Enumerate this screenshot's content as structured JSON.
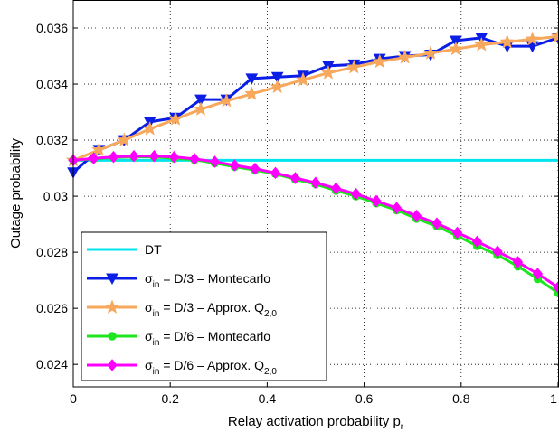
{
  "chart_data": {
    "type": "line",
    "xlabel": "Relay activation probability p",
    "xlabel_sub": "r",
    "ylabel": "Outage probability",
    "xlim": [
      0,
      1
    ],
    "ylim": [
      0.0232,
      0.037
    ],
    "grid": true,
    "legend_position": "bottom-left",
    "x_ticks": [
      "0",
      "0.2",
      "0.4",
      "0.6",
      "0.8",
      "1"
    ],
    "y_ticks": [
      "0.024",
      "0.026",
      "0.028",
      "0.03",
      "0.032",
      "0.034",
      "0.036"
    ],
    "x_tick_values": [
      0,
      0.2,
      0.4,
      0.6,
      0.8,
      1.0
    ],
    "y_tick_values": [
      0.024,
      0.026,
      0.028,
      0.03,
      0.032,
      0.034,
      0.036
    ],
    "series": [
      {
        "name": "DT",
        "legend_parts": [
          {
            "t": "DT",
            "sub": false
          }
        ],
        "color": "#00e5ee",
        "marker": "none",
        "x": [
          0,
          1
        ],
        "y": [
          0.03128,
          0.03128
        ]
      },
      {
        "name": "σin = D/3 – Montecarlo",
        "legend_parts": [
          {
            "t": "σ",
            "sub": false
          },
          {
            "t": "in",
            "sub": true
          },
          {
            "t": " = D/3 – Montecarlo",
            "sub": false
          }
        ],
        "color": "#0a1ee6",
        "marker": "triangle-down",
        "x": [
          0,
          0.053,
          0.105,
          0.158,
          0.211,
          0.263,
          0.316,
          0.368,
          0.421,
          0.474,
          0.526,
          0.579,
          0.632,
          0.684,
          0.737,
          0.789,
          0.842,
          0.895,
          0.947,
          1.0
        ],
        "y": [
          0.03085,
          0.03165,
          0.032,
          0.03265,
          0.0328,
          0.03345,
          0.03345,
          0.0342,
          0.03425,
          0.0343,
          0.03465,
          0.0347,
          0.0349,
          0.035,
          0.03505,
          0.03555,
          0.03565,
          0.03535,
          0.03535,
          0.03565
        ]
      },
      {
        "name": "σin = D/3 – Approx. Q2,0",
        "legend_parts": [
          {
            "t": "σ",
            "sub": false
          },
          {
            "t": "in",
            "sub": true
          },
          {
            "t": " = D/3 – Approx. Q",
            "sub": false
          },
          {
            "t": "2,0",
            "sub": true
          }
        ],
        "color": "#f7a85c",
        "marker": "star",
        "x": [
          0,
          0.053,
          0.105,
          0.158,
          0.211,
          0.263,
          0.316,
          0.368,
          0.421,
          0.474,
          0.526,
          0.579,
          0.632,
          0.684,
          0.737,
          0.789,
          0.842,
          0.895,
          0.947,
          1.0
        ],
        "y": [
          0.03128,
          0.03165,
          0.032,
          0.0324,
          0.03275,
          0.0331,
          0.0334,
          0.03365,
          0.0339,
          0.03415,
          0.0344,
          0.0346,
          0.0348,
          0.03495,
          0.0351,
          0.03525,
          0.0354,
          0.0355,
          0.0356,
          0.0357
        ]
      },
      {
        "name": "σin = D/6 – Montecarlo",
        "legend_parts": [
          {
            "t": "σ",
            "sub": false
          },
          {
            "t": "in",
            "sub": true
          },
          {
            "t": " = D/6 – Montecarlo",
            "sub": false
          }
        ],
        "color": "#1ee61e",
        "marker": "circle",
        "x": [
          0,
          0.042,
          0.083,
          0.125,
          0.167,
          0.208,
          0.25,
          0.292,
          0.333,
          0.375,
          0.417,
          0.458,
          0.5,
          0.542,
          0.583,
          0.625,
          0.667,
          0.708,
          0.75,
          0.792,
          0.833,
          0.875,
          0.917,
          0.958,
          1.0
        ],
        "y": [
          0.03128,
          0.03133,
          0.03138,
          0.0314,
          0.0314,
          0.03135,
          0.0313,
          0.03118,
          0.03105,
          0.03093,
          0.0308,
          0.0306,
          0.03043,
          0.0302,
          0.03,
          0.02975,
          0.0295,
          0.0292,
          0.02893,
          0.02858,
          0.02823,
          0.0279,
          0.0275,
          0.02705,
          0.02655
        ]
      },
      {
        "name": "σin = D/6 – Approx. Q2,0",
        "legend_parts": [
          {
            "t": "σ",
            "sub": false
          },
          {
            "t": "in",
            "sub": true
          },
          {
            "t": " = D/6 – Approx. Q",
            "sub": false
          },
          {
            "t": "2,0",
            "sub": true
          }
        ],
        "color": "#ff00ff",
        "marker": "diamond",
        "x": [
          0,
          0.042,
          0.083,
          0.125,
          0.167,
          0.208,
          0.25,
          0.292,
          0.333,
          0.375,
          0.417,
          0.458,
          0.5,
          0.542,
          0.583,
          0.625,
          0.667,
          0.708,
          0.75,
          0.792,
          0.833,
          0.875,
          0.917,
          0.958,
          1.0
        ],
        "y": [
          0.03128,
          0.03135,
          0.0314,
          0.03143,
          0.03143,
          0.0314,
          0.03133,
          0.03123,
          0.0311,
          0.03098,
          0.03083,
          0.03065,
          0.03048,
          0.03028,
          0.03008,
          0.02983,
          0.02958,
          0.0293,
          0.02903,
          0.0287,
          0.02838,
          0.02803,
          0.02765,
          0.02723,
          0.02675
        ]
      }
    ]
  }
}
